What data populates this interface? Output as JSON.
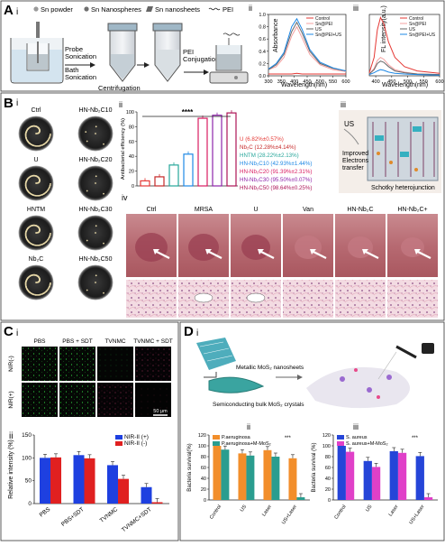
{
  "panels": {
    "A": {
      "letter": "A",
      "sub_i": "i",
      "sub_ii": "ii",
      "sub_iii": "iii",
      "legend_items": [
        "Sn powder",
        "Sn Nanospheres",
        "Sn nanosheets",
        "PEI"
      ],
      "steps": [
        "Probe\nSonication",
        "Bath\nSonication",
        "Centrifugation",
        "PEI\nConjugation"
      ]
    },
    "B": {
      "letter": "B",
      "sub_i": "i",
      "sub_ii": "ii",
      "sub_iii": "iii",
      "sub_iv": "iv",
      "dish_labels": [
        "Ctrl",
        "HN-Nb₂C10",
        "U",
        "HN-Nb₂C20",
        "HNTM",
        "HN-Nb₂C30",
        "Nb₂C",
        "HN-Nb₂C50"
      ],
      "schematic": {
        "us": "US",
        "improved": "Improved\nElectrons\ntransfer",
        "schottky": "Schotky heterojunction"
      },
      "tissue_labels": [
        "Ctrl",
        "MRSA",
        "U",
        "Van",
        "HN-Nb₂C",
        "HN-Nb₂C+"
      ]
    },
    "C": {
      "letter": "C",
      "sub_i": "i",
      "sub_ii": "ii",
      "col_labels": [
        "PBS",
        "PBS + SDT",
        "TVNMC",
        "TVNMC + SDT"
      ],
      "row_labels": [
        "NIR(-)",
        "NIR(+)"
      ],
      "scalebar": "50 μm"
    },
    "D": {
      "letter": "D",
      "sub_i": "i",
      "sub_ii": "ii",
      "sub_iii": "iii",
      "labels": {
        "metallic": "Metallic MoS₂ nanosheets",
        "semi": "Semiconducting bulk MoS₂ crystals"
      }
    }
  },
  "chart_data": [
    {
      "id": "A-ii",
      "type": "line",
      "xlabel": "Wavelength(nm)",
      "ylabel": "Absorbance",
      "xlim": [
        300,
        600
      ],
      "ylim": [
        0.0,
        1.0
      ],
      "xticks": [
        300,
        350,
        400,
        450,
        500,
        550,
        600
      ],
      "yticks": [
        0.0,
        0.2,
        0.4,
        0.6,
        0.8,
        1.0
      ],
      "series": [
        {
          "name": "Control",
          "color": "#e53935",
          "x": [
            300,
            330,
            360,
            390,
            410,
            430,
            460,
            500,
            550,
            600
          ],
          "y": [
            0.03,
            0.03,
            0.03,
            0.03,
            0.04,
            0.03,
            0.03,
            0.03,
            0.03,
            0.03
          ]
        },
        {
          "name": "Sn@PEI",
          "color": "#f4a0a0",
          "x": [
            300,
            330,
            360,
            390,
            410,
            430,
            460,
            500,
            550,
            600
          ],
          "y": [
            0.1,
            0.15,
            0.3,
            0.65,
            0.8,
            0.62,
            0.35,
            0.18,
            0.1,
            0.07
          ]
        },
        {
          "name": "US",
          "color": "#666666",
          "x": [
            300,
            330,
            360,
            390,
            410,
            430,
            460,
            500,
            550,
            600
          ],
          "y": [
            0.1,
            0.18,
            0.35,
            0.72,
            0.87,
            0.7,
            0.4,
            0.2,
            0.12,
            0.08
          ]
        },
        {
          "name": "Sn@PEI+US",
          "color": "#1e88e5",
          "x": [
            300,
            330,
            360,
            390,
            410,
            430,
            460,
            500,
            550,
            600
          ],
          "y": [
            0.11,
            0.2,
            0.38,
            0.8,
            0.93,
            0.76,
            0.43,
            0.22,
            0.13,
            0.08
          ]
        }
      ]
    },
    {
      "id": "A-iii",
      "type": "line",
      "xlabel": "Wavelength(nm)",
      "ylabel": "FL intensity(a.u.)",
      "xlim": [
        380,
        600
      ],
      "ylim": [
        0,
        1
      ],
      "xticks": [
        400,
        450,
        500,
        550,
        600
      ],
      "series": [
        {
          "name": "Control",
          "color": "#e53935",
          "x": [
            380,
            395,
            405,
            415,
            425,
            440,
            460,
            490,
            530,
            600
          ],
          "y": [
            0.05,
            0.3,
            0.75,
            0.95,
            0.85,
            0.55,
            0.3,
            0.15,
            0.08,
            0.04
          ]
        },
        {
          "name": "Sn@PEI",
          "color": "#f4a0a0",
          "x": [
            380,
            395,
            405,
            415,
            425,
            440,
            460,
            490,
            530,
            600
          ],
          "y": [
            0.03,
            0.12,
            0.25,
            0.3,
            0.27,
            0.18,
            0.1,
            0.06,
            0.03,
            0.02
          ]
        },
        {
          "name": "US",
          "color": "#666666",
          "x": [
            380,
            395,
            405,
            415,
            425,
            440,
            460,
            490,
            530,
            600
          ],
          "y": [
            0.03,
            0.1,
            0.2,
            0.24,
            0.22,
            0.15,
            0.08,
            0.05,
            0.03,
            0.02
          ]
        },
        {
          "name": "Sn@PEI+US",
          "color": "#1e88e5",
          "x": [
            380,
            395,
            405,
            415,
            425,
            440,
            460,
            490,
            530,
            600
          ],
          "y": [
            0.02,
            0.05,
            0.08,
            0.1,
            0.09,
            0.06,
            0.04,
            0.03,
            0.02,
            0.01
          ]
        }
      ]
    },
    {
      "id": "B-ii",
      "type": "bar",
      "ylabel": "Antibacterial efficiency (%)",
      "ylim": [
        0,
        100
      ],
      "yticks": [
        0,
        20,
        40,
        60,
        80,
        100
      ],
      "significance": "****",
      "categories": [
        "U",
        "Nb₂C",
        "HNTM",
        "HN-Nb₂C10",
        "HN-Nb₂C20",
        "HN-Nb₂C30",
        "HN-Nb₂C50"
      ],
      "values": [
        6.82,
        12.28,
        28.22,
        42.93,
        91.39,
        95.5,
        98.64
      ],
      "colors": [
        "#e53935",
        "#c62828",
        "#26a69a",
        "#1e88e5",
        "#d81b60",
        "#8e24aa",
        "#ad1457"
      ],
      "legend": [
        "U (6.82%±0.57%)",
        "Nb₂C (12.28%±4.14%)",
        "HNTM (28.22%±2.13%)",
        "HN-Nb₂C10 (42.93%±1.44%)",
        "HN-Nb₂C20 (91.39%±2.31%)",
        "HN-Nb₂C30 (95.50%±0.07%)",
        "HN-Nb₂C50 (98.64%±0.25%)"
      ]
    },
    {
      "id": "C-ii",
      "type": "bar",
      "ylabel": "Relative intensity (%)",
      "ylim": [
        0,
        150
      ],
      "yticks": [
        0,
        50,
        100,
        150
      ],
      "categories": [
        "PBS",
        "PBS+SDT",
        "TVNMC",
        "TVNMC+SDT"
      ],
      "series": [
        {
          "name": "NIR-II (+)",
          "color": "#1e40e0",
          "values": [
            100,
            106,
            84,
            36
          ]
        },
        {
          "name": "NIR-II (-)",
          "color": "#e02020",
          "values": [
            101,
            99,
            54,
            3
          ]
        }
      ]
    },
    {
      "id": "D-ii",
      "type": "bar",
      "ylabel": "Bacteria survival(%)",
      "ylim": [
        0,
        120
      ],
      "yticks": [
        0,
        20,
        40,
        60,
        80,
        100,
        120
      ],
      "significance": "***",
      "categories": [
        "Control",
        "US",
        "Laser",
        "US+Laser"
      ],
      "series": [
        {
          "name": "P.aeruginosa",
          "color": "#f28e2b",
          "values": [
            100,
            86,
            92,
            77
          ]
        },
        {
          "name": "P.aeruginosa+M-MoS₂",
          "color": "#2a9d8f",
          "values": [
            93,
            82,
            80,
            5
          ]
        }
      ]
    },
    {
      "id": "D-iii",
      "type": "bar",
      "ylabel": "Bacteria survival (%)",
      "ylim": [
        0,
        120
      ],
      "yticks": [
        0,
        20,
        40,
        60,
        80,
        100,
        120
      ],
      "significance": "***",
      "categories": [
        "Control",
        "US",
        "Laser",
        "US+Laser"
      ],
      "series": [
        {
          "name": "S. aureus",
          "color": "#2545d8",
          "values": [
            100,
            72,
            90,
            81
          ]
        },
        {
          "name": "S. aureus+M-MoS₂",
          "color": "#e040c8",
          "values": [
            89,
            61,
            87,
            5
          ]
        }
      ]
    }
  ]
}
